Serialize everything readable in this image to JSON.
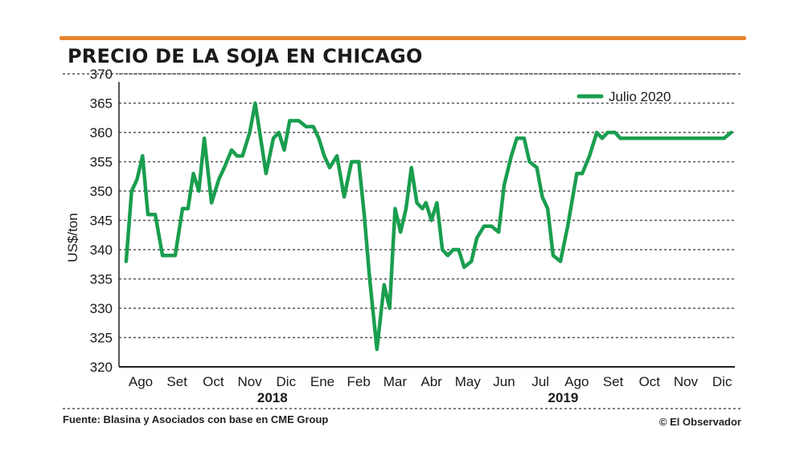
{
  "header": {
    "title": "PRECIO DE LA SOJA EN CHICAGO"
  },
  "footer": {
    "source": "Fuente: Blasina y Asociados con base en CME Group",
    "credit": "© El Observador"
  },
  "colors": {
    "accent_rule": "#e8852c",
    "series": "#1a9e4f",
    "grid": "#555555"
  },
  "chart_data": {
    "type": "line",
    "ylabel": "US$/ton",
    "ylim": [
      320,
      370
    ],
    "yticks": [
      320,
      325,
      330,
      335,
      340,
      345,
      350,
      355,
      360,
      365,
      370
    ],
    "grid": "horizontal dotted",
    "legend_position": "top-right",
    "month_labels": [
      "Ago",
      "Set",
      "Oct",
      "Nov",
      "Dic",
      "Ene",
      "Feb",
      "Mar",
      "Abr",
      "May",
      "Jun",
      "Jul",
      "Ago",
      "Set",
      "Oct",
      "Nov",
      "Dic"
    ],
    "year_labels": [
      {
        "label": "2018",
        "month_index": 4
      },
      {
        "label": "2019",
        "month_index": 12
      }
    ],
    "series": [
      {
        "name": "Julio 2020",
        "x": [
          -0.4,
          -0.25,
          -0.1,
          0.05,
          0.2,
          0.4,
          0.6,
          0.75,
          0.95,
          1.15,
          1.3,
          1.45,
          1.6,
          1.75,
          1.95,
          2.15,
          2.3,
          2.5,
          2.65,
          2.8,
          3.0,
          3.15,
          3.3,
          3.45,
          3.65,
          3.8,
          3.95,
          4.1,
          4.25,
          4.35,
          4.55,
          4.75,
          4.9,
          5.05,
          5.2,
          5.4,
          5.6,
          5.8,
          6.0,
          6.15,
          6.3,
          6.5,
          6.7,
          6.85,
          7.0,
          7.15,
          7.3,
          7.45,
          7.6,
          7.75,
          7.85,
          8.0,
          8.15,
          8.3,
          8.45,
          8.6,
          8.75,
          8.9,
          9.1,
          9.25,
          9.45,
          9.65,
          9.85,
          10.0,
          10.2,
          10.35,
          10.55,
          10.7,
          10.9,
          11.05,
          11.2,
          11.35,
          11.55,
          11.75,
          12.0,
          12.15,
          12.35,
          12.55,
          12.7,
          12.85,
          13.05,
          13.2,
          13.35,
          13.55,
          13.75,
          13.85,
          14.0,
          14.15,
          14.35,
          14.5,
          14.65,
          14.8,
          14.95,
          15.1,
          15.3,
          15.45,
          15.6,
          15.75,
          15.9,
          16.05,
          16.25
        ],
        "values": [
          338,
          350,
          352,
          356,
          346,
          346,
          339,
          339,
          339,
          347,
          347,
          353,
          350,
          359,
          348,
          352,
          354,
          357,
          356,
          356,
          360,
          365,
          359,
          353,
          359,
          360,
          357,
          362,
          362,
          362,
          361,
          361,
          359,
          356,
          354,
          356,
          349,
          355,
          355,
          346,
          335,
          323,
          334,
          330,
          347,
          343,
          347,
          354,
          348,
          347,
          348,
          345,
          348,
          340,
          339,
          340,
          340,
          337,
          338,
          342,
          344,
          344,
          343,
          351,
          356,
          359,
          359,
          355,
          354,
          349,
          347,
          339,
          338,
          344,
          353,
          353,
          356,
          360,
          359,
          360,
          360,
          359,
          359,
          359,
          359,
          359,
          359,
          359,
          359,
          359,
          359,
          359,
          359,
          359,
          359,
          359,
          359,
          359,
          359,
          359,
          360
        ]
      }
    ]
  }
}
